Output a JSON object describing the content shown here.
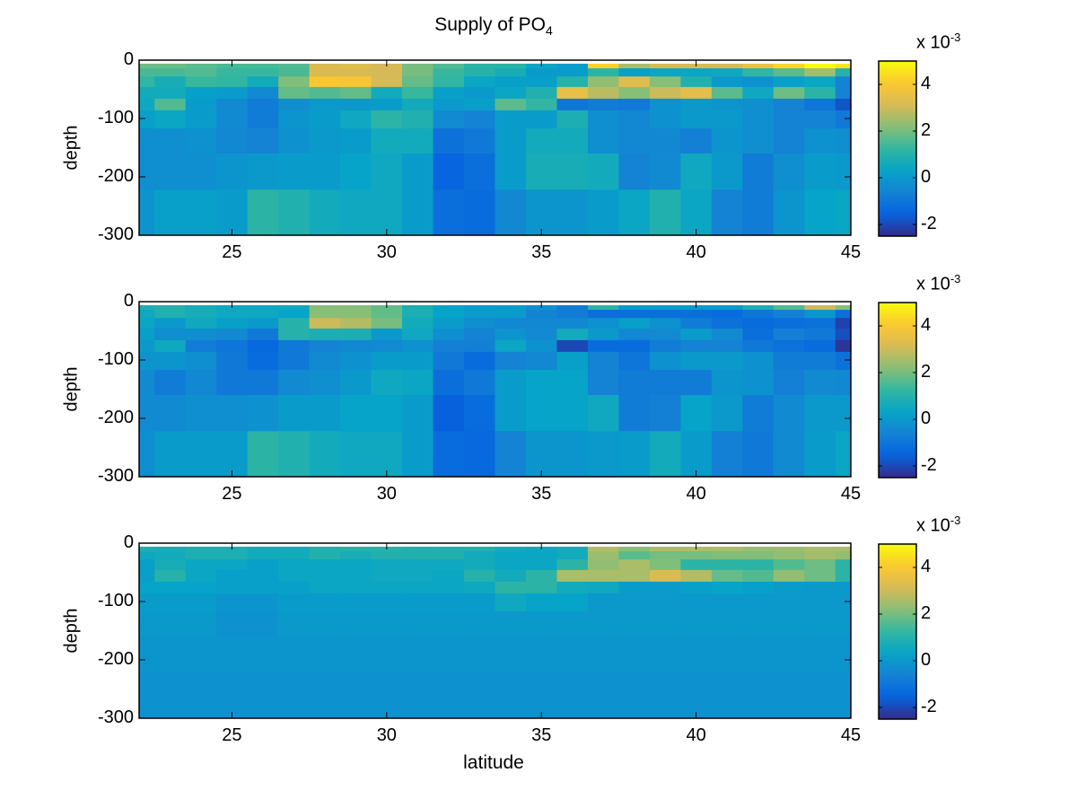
{
  "chart_data": {
    "type": "heatmap",
    "title": "Supply of PO",
    "title_subscript": "4",
    "xlabel": "latitude",
    "ylabel": "depth",
    "xlim": [
      22,
      45
    ],
    "ylim": [
      -300,
      0
    ],
    "x_ticks": [
      "25",
      "30",
      "35",
      "40",
      "45"
    ],
    "y_ticks": [
      "0",
      "-100",
      "-200",
      "-300"
    ],
    "colorbar": {
      "clim": [
        -2.5,
        5
      ],
      "ticks": [
        "4",
        "2",
        "0",
        "-2"
      ],
      "multiplier": "x 10",
      "multiplier_exponent": "-3",
      "colormap": "parula"
    },
    "x_centers": [
      22,
      23,
      24,
      25,
      26,
      27,
      28,
      29,
      30,
      31,
      32,
      33,
      34,
      35,
      36,
      37,
      38,
      39,
      40,
      41,
      42,
      43,
      44,
      45
    ],
    "depth_edges": [
      -6,
      -14,
      -28,
      -46,
      -66,
      -86,
      -117,
      -160,
      -222,
      -300
    ],
    "panels": [
      {
        "name": "panel-1",
        "values": [
          [
            1.9,
            1.9,
            1.7,
            1.5,
            1.5,
            1.6,
            3.2,
            3.3,
            3.1,
            2.0,
            1.6,
            1.1,
            1.1,
            0.4,
            0.1,
            4.2,
            2.6,
            3.2,
            3.2,
            3.2,
            3.6,
            4.3,
            5.0,
            4.6
          ],
          [
            1.5,
            1.5,
            1.6,
            1.3,
            1.3,
            1.5,
            3.2,
            3.2,
            3.1,
            2.0,
            1.3,
            1.0,
            0.7,
            0.1,
            0.1,
            1.1,
            0.2,
            0.4,
            0.4,
            0.5,
            1.2,
            1.7,
            2.5,
            1.0
          ],
          [
            1.2,
            0.7,
            1.3,
            1.2,
            0.6,
            2.1,
            4.0,
            3.9,
            3.1,
            1.8,
            1.2,
            0.4,
            0.2,
            0.2,
            1.0,
            2.3,
            3.3,
            2.2,
            0.9,
            0.0,
            -0.2,
            0.2,
            0.4,
            -0.6
          ],
          [
            0.6,
            0.6,
            0.2,
            0.1,
            -0.4,
            1.8,
            1.6,
            1.8,
            0.6,
            1.3,
            0.2,
            0.0,
            0.4,
            0.9,
            3.5,
            2.8,
            2.2,
            3.0,
            3.4,
            1.7,
            0.5,
            1.9,
            1.1,
            -0.6
          ],
          [
            0.5,
            1.6,
            0.1,
            -0.4,
            -0.8,
            -0.3,
            0.0,
            0.0,
            0.1,
            0.6,
            0.0,
            0.2,
            1.7,
            1.2,
            -1.0,
            -0.8,
            -0.9,
            -0.2,
            0.0,
            -0.1,
            -0.3,
            -0.6,
            -1.0,
            -1.8
          ],
          [
            0.2,
            0.4,
            0.1,
            -0.4,
            -0.8,
            -0.1,
            0.1,
            0.5,
            1.1,
            0.9,
            -0.4,
            -0.6,
            0.1,
            0.1,
            0.8,
            -0.3,
            -0.5,
            -0.2,
            0.0,
            0.0,
            -0.3,
            -0.6,
            -0.6,
            -0.9
          ],
          [
            -0.3,
            -0.3,
            -0.2,
            -0.5,
            -0.6,
            -0.2,
            0.0,
            0.1,
            0.6,
            0.6,
            -1.1,
            -0.9,
            0.1,
            0.6,
            0.6,
            -0.3,
            -0.5,
            -0.5,
            -0.7,
            -0.1,
            -0.3,
            -0.6,
            -0.2,
            -0.3
          ],
          [
            -0.3,
            -0.3,
            -0.3,
            -0.1,
            0.0,
            0.1,
            0.1,
            0.3,
            0.5,
            0.1,
            -1.5,
            -1.2,
            0.1,
            0.7,
            0.7,
            0.6,
            -0.6,
            -0.4,
            0.5,
            0.0,
            -0.8,
            -0.3,
            0.1,
            0.0
          ],
          [
            -0.1,
            0.2,
            0.2,
            0.1,
            1.1,
            0.9,
            0.6,
            0.5,
            0.5,
            0.1,
            -1.2,
            -1.3,
            -0.5,
            -0.1,
            -0.1,
            0.1,
            0.4,
            0.9,
            0.4,
            -0.6,
            -0.8,
            -0.1,
            0.3,
            0.4
          ]
        ]
      },
      {
        "name": "panel-2",
        "values": [
          [
            0.8,
            0.9,
            0.7,
            0.5,
            0.5,
            0.5,
            2.2,
            2.2,
            1.8,
            0.8,
            0.3,
            0.1,
            0.1,
            -0.2,
            -0.8,
            1.1,
            0.1,
            0.1,
            0.1,
            0.1,
            0.8,
            1.6,
            3.0,
            2.2
          ],
          [
            0.5,
            0.9,
            0.7,
            0.5,
            0.5,
            0.3,
            2.2,
            2.2,
            1.8,
            0.8,
            0.3,
            0.1,
            0.1,
            -0.6,
            -0.8,
            -1.2,
            -1.2,
            -1.2,
            -1.2,
            -1.3,
            -1.0,
            -0.7,
            -0.1,
            -1.2
          ],
          [
            0.4,
            0.0,
            0.5,
            0.2,
            0.0,
            1.0,
            3.0,
            2.7,
            2.0,
            0.6,
            0.1,
            -0.3,
            -0.5,
            -0.5,
            -0.5,
            -0.2,
            0.2,
            -0.2,
            -0.8,
            -1.1,
            -1.3,
            -1.2,
            -1.1,
            -2.1
          ],
          [
            0.2,
            -0.3,
            -0.3,
            -0.4,
            -0.9,
            1.0,
            0.8,
            0.8,
            0.0,
            0.5,
            -0.3,
            -0.6,
            -0.1,
            -0.4,
            0.6,
            0.0,
            -0.5,
            -0.4,
            0.1,
            -0.4,
            -1.2,
            -0.7,
            -0.9,
            -1.9
          ],
          [
            0.0,
            0.5,
            -0.8,
            -1.0,
            -1.4,
            -0.9,
            -0.6,
            -0.5,
            -0.4,
            -0.2,
            -0.7,
            -0.7,
            0.4,
            -0.2,
            -2.0,
            -1.3,
            -1.3,
            -0.8,
            -0.6,
            -0.6,
            -0.9,
            -1.1,
            -1.3,
            -2.3
          ],
          [
            -0.1,
            -0.1,
            -0.3,
            -0.9,
            -1.3,
            -0.9,
            -0.4,
            -0.2,
            0.1,
            0.1,
            -0.9,
            -1.3,
            -0.6,
            -0.5,
            0.2,
            -0.6,
            -1.0,
            -0.2,
            0.0,
            0.0,
            -0.2,
            -0.8,
            -0.8,
            -1.1
          ],
          [
            -0.4,
            -0.8,
            -0.5,
            -0.9,
            -0.9,
            -0.4,
            -0.3,
            0.0,
            0.5,
            0.4,
            -1.2,
            -0.9,
            0.1,
            0.3,
            0.3,
            -0.6,
            -0.8,
            -0.8,
            -0.8,
            -0.1,
            -0.2,
            -0.7,
            -0.4,
            -0.5
          ],
          [
            -0.4,
            -0.4,
            -0.3,
            -0.3,
            -0.2,
            0.1,
            0.1,
            0.3,
            0.3,
            0.1,
            -1.6,
            -1.3,
            0.1,
            0.3,
            0.3,
            0.5,
            -0.8,
            -0.7,
            0.3,
            0.0,
            -0.8,
            -0.4,
            0.0,
            0.0
          ],
          [
            -0.3,
            0.1,
            0.1,
            0.1,
            1.1,
            0.9,
            0.6,
            0.5,
            0.5,
            0.1,
            -1.3,
            -1.4,
            -0.6,
            -0.1,
            -0.1,
            0.0,
            0.1,
            0.6,
            0.1,
            -0.7,
            -0.9,
            -0.4,
            0.1,
            0.4
          ]
        ]
      },
      {
        "name": "panel-3",
        "values": [
          [
            0.8,
            0.7,
            0.8,
            0.8,
            0.6,
            0.6,
            0.9,
            1.0,
            1.0,
            0.9,
            0.9,
            0.9,
            0.6,
            0.5,
            0.6,
            2.7,
            2.2,
            2.6,
            2.6,
            2.6,
            2.4,
            2.4,
            2.6,
            2.6
          ],
          [
            0.5,
            0.6,
            0.8,
            0.8,
            0.6,
            0.6,
            0.9,
            0.7,
            0.9,
            0.9,
            0.9,
            0.6,
            0.4,
            0.4,
            0.6,
            2.4,
            1.7,
            2.0,
            2.0,
            2.1,
            2.1,
            2.3,
            2.5,
            2.3
          ],
          [
            0.2,
            0.7,
            0.4,
            0.4,
            0.2,
            0.4,
            0.4,
            0.4,
            0.5,
            0.5,
            0.5,
            0.6,
            0.4,
            0.4,
            1.1,
            2.3,
            2.6,
            2.1,
            1.1,
            1.1,
            1.1,
            1.6,
            1.9,
            1.1
          ],
          [
            0.2,
            1.0,
            0.4,
            0.2,
            0.2,
            0.4,
            0.4,
            0.4,
            0.5,
            0.5,
            0.4,
            1.0,
            0.6,
            1.1,
            2.6,
            2.6,
            2.6,
            3.2,
            2.7,
            1.8,
            1.6,
            2.3,
            1.9,
            1.1
          ],
          [
            0.3,
            0.3,
            0.3,
            0.2,
            0.2,
            0.2,
            0.4,
            0.4,
            0.4,
            0.4,
            0.4,
            0.5,
            1.1,
            1.1,
            0.6,
            0.5,
            0.1,
            0.1,
            0.2,
            0.3,
            0.2,
            0.1,
            0.0,
            0.0
          ],
          [
            0.1,
            0.1,
            0.1,
            -0.1,
            -0.1,
            0.1,
            0.1,
            0.1,
            0.1,
            0.1,
            0.1,
            0.1,
            0.5,
            0.3,
            0.3,
            0.0,
            0.0,
            0.0,
            0.0,
            0.0,
            0.0,
            0.0,
            0.0,
            0.0
          ],
          [
            0.0,
            0.0,
            0.0,
            -0.2,
            -0.2,
            0.0,
            0.0,
            0.0,
            0.0,
            0.0,
            0.0,
            0.0,
            0.0,
            0.0,
            0.0,
            0.0,
            0.0,
            0.0,
            0.0,
            0.0,
            0.0,
            0.0,
            0.0,
            0.0
          ],
          [
            -0.1,
            -0.1,
            -0.1,
            -0.1,
            -0.1,
            -0.1,
            -0.1,
            -0.1,
            -0.1,
            -0.1,
            -0.1,
            -0.1,
            -0.1,
            -0.1,
            -0.1,
            -0.1,
            -0.1,
            -0.1,
            -0.1,
            -0.1,
            -0.1,
            -0.1,
            -0.1,
            -0.1
          ],
          [
            -0.2,
            -0.2,
            -0.2,
            -0.2,
            -0.2,
            -0.2,
            -0.2,
            -0.2,
            -0.2,
            -0.2,
            -0.2,
            -0.2,
            -0.2,
            -0.2,
            -0.2,
            -0.2,
            -0.2,
            -0.2,
            -0.2,
            -0.2,
            -0.2,
            -0.2,
            -0.2,
            -0.2
          ]
        ]
      }
    ]
  }
}
